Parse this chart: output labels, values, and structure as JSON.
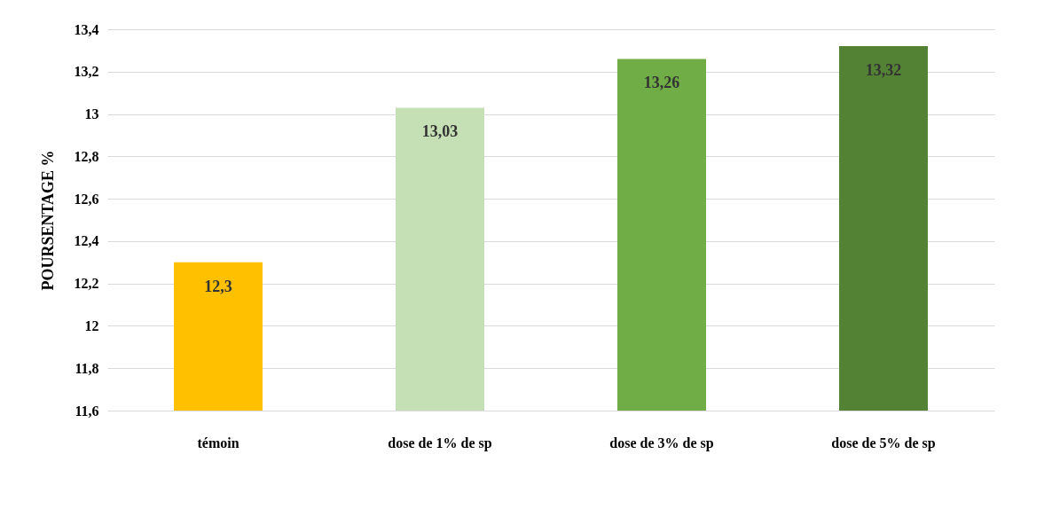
{
  "chart_data": {
    "type": "bar",
    "ylabel": "POURSENTAGE %",
    "categories": [
      "témoin",
      "dose de 1% de sp",
      "dose de 3% de sp",
      "dose de 5% de sp"
    ],
    "values": [
      12.3,
      13.03,
      13.26,
      13.32
    ],
    "colors": [
      "#ffc000",
      "#c5e0b4",
      "#70ad47",
      "#548235"
    ],
    "value_labels": [
      "12,3",
      "13,03",
      "13,26",
      "13,32"
    ],
    "ylim": [
      11.6,
      13.4
    ],
    "yticks": [
      {
        "value": 11.6,
        "label": "11,6"
      },
      {
        "value": 11.8,
        "label": "11,8"
      },
      {
        "value": 12,
        "label": "12"
      },
      {
        "value": 12.2,
        "label": "12,2"
      },
      {
        "value": 12.4,
        "label": "12,4"
      },
      {
        "value": 12.6,
        "label": "12,6"
      },
      {
        "value": 12.8,
        "label": "12,8"
      },
      {
        "value": 13,
        "label": "13"
      },
      {
        "value": 13.2,
        "label": "13,2"
      },
      {
        "value": 13.4,
        "label": "13,4"
      }
    ],
    "grid": "y",
    "legend": false
  }
}
